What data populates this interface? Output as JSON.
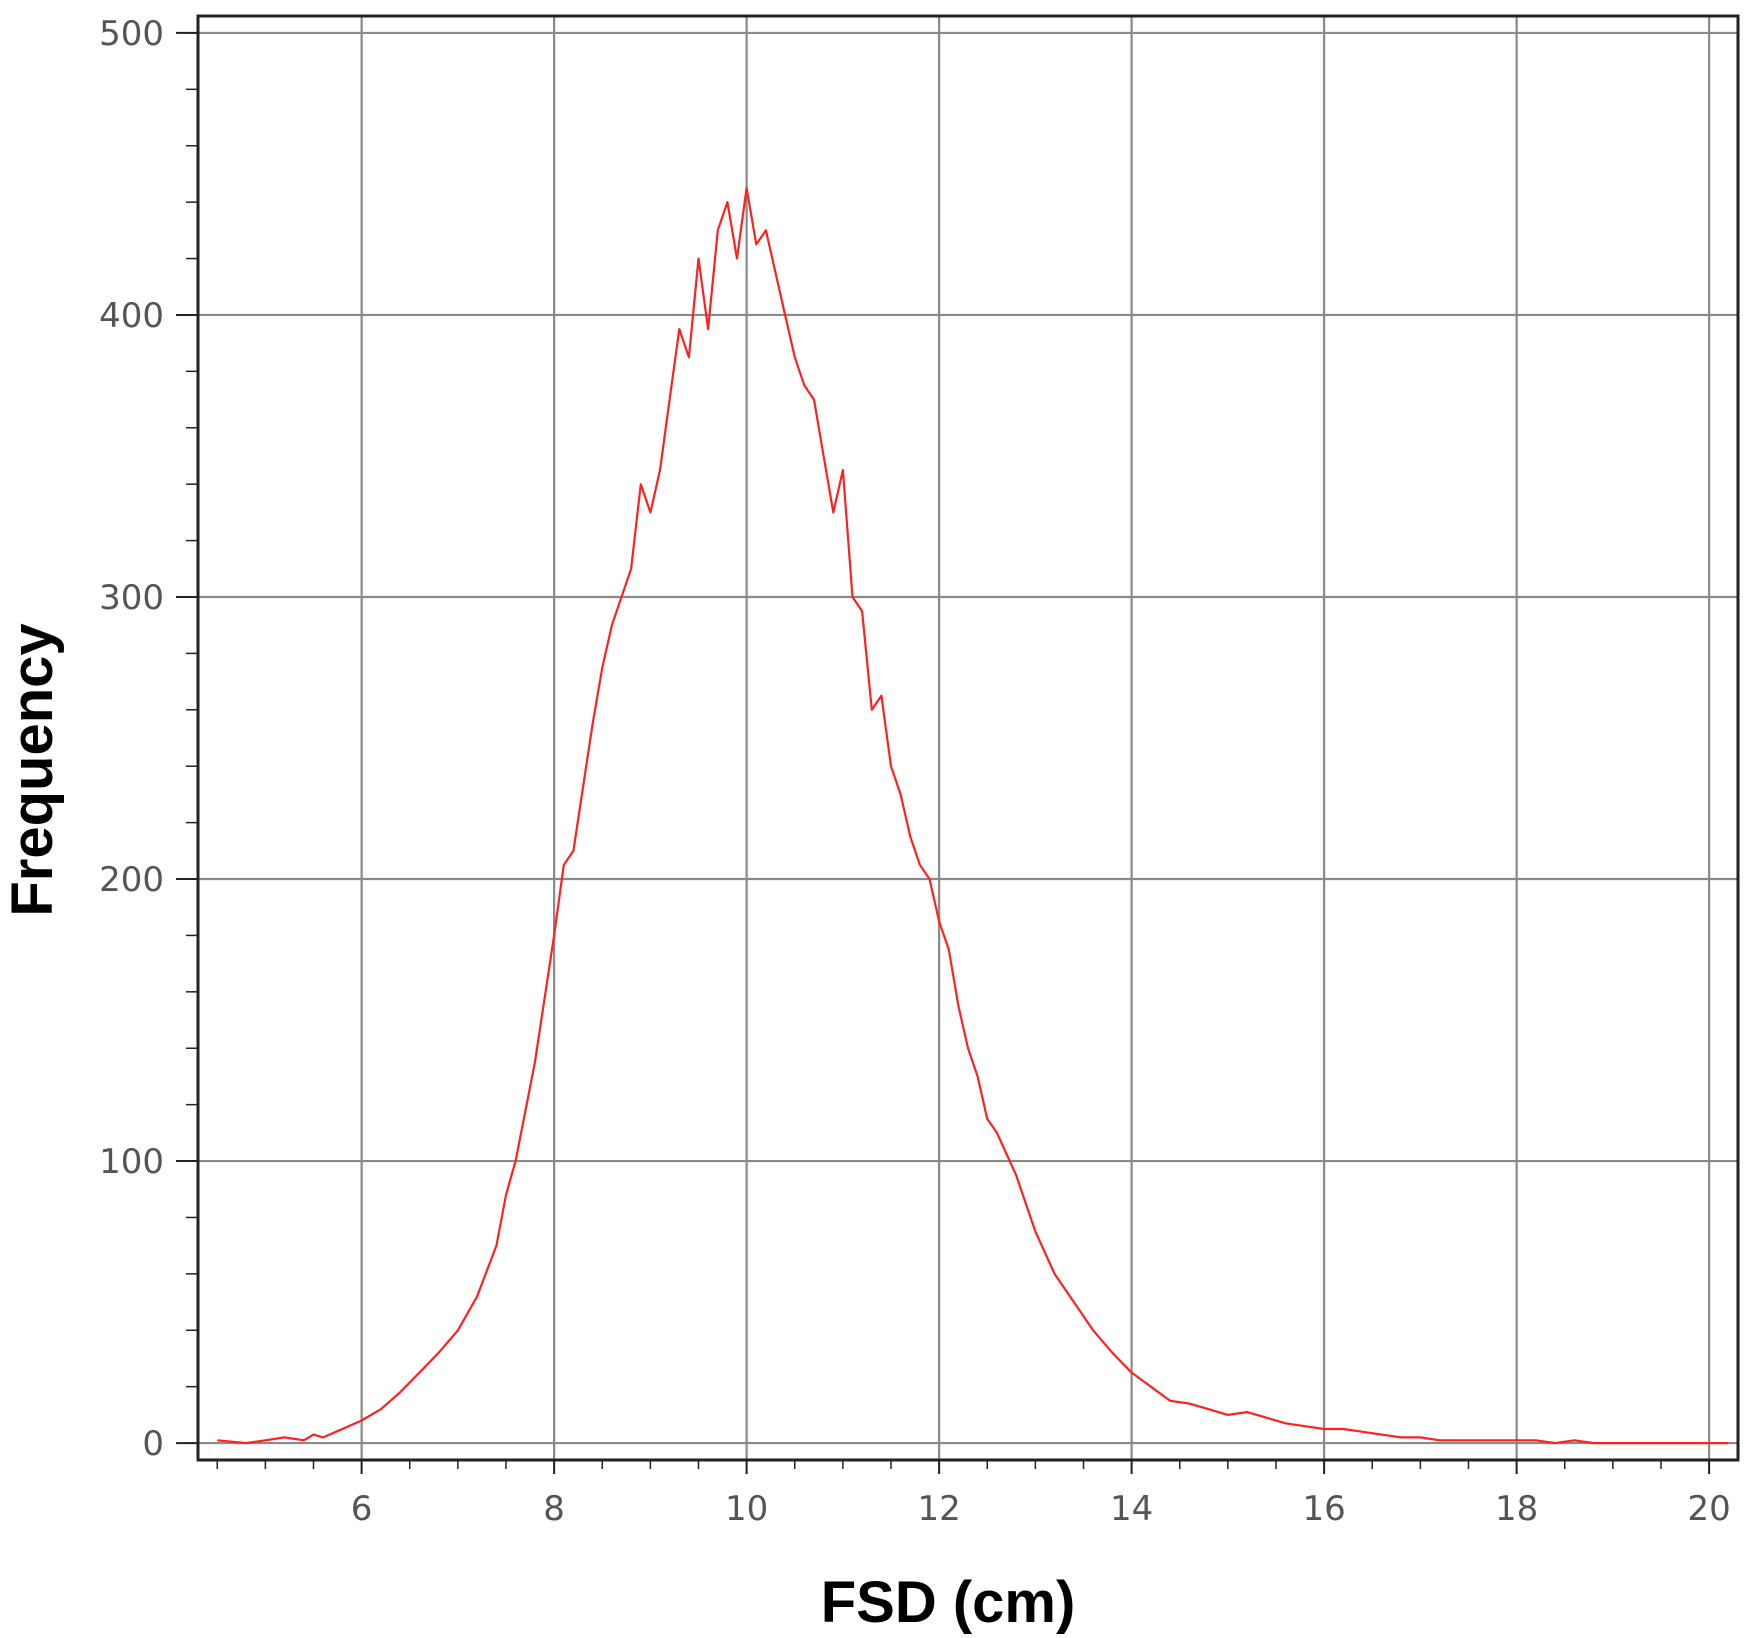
{
  "chart_data": {
    "type": "line",
    "title": "",
    "xlabel": "FSD (cm)",
    "ylabel": "Frequency",
    "xlim": [
      4.3,
      20.3
    ],
    "ylim": [
      -6,
      506
    ],
    "xticks": [
      6,
      8,
      10,
      12,
      14,
      16,
      18,
      20
    ],
    "yticks": [
      0,
      100,
      200,
      300,
      400,
      500
    ],
    "x_minor_step": 0.5,
    "y_minor_step": 20,
    "grid": true,
    "line_color": "#ff2020",
    "grid_color": "#8a8a8a",
    "axis_color": "#222222",
    "series": [
      {
        "x": [
          4.5,
          4.8,
          5.0,
          5.2,
          5.4,
          5.5,
          5.6,
          5.8,
          6.0,
          6.2,
          6.4,
          6.6,
          6.8,
          7.0,
          7.2,
          7.4,
          7.5,
          7.6,
          7.8,
          8.0,
          8.1,
          8.2,
          8.4,
          8.5,
          8.6,
          8.8,
          8.9,
          9.0,
          9.1,
          9.2,
          9.3,
          9.4,
          9.5,
          9.6,
          9.7,
          9.8,
          9.9,
          10.0,
          10.1,
          10.2,
          10.3,
          10.4,
          10.5,
          10.6,
          10.7,
          10.8,
          10.9,
          11.0,
          11.1,
          11.2,
          11.3,
          11.4,
          11.5,
          11.6,
          11.7,
          11.8,
          11.9,
          12.0,
          12.1,
          12.2,
          12.3,
          12.4,
          12.5,
          12.6,
          12.8,
          13.0,
          13.2,
          13.4,
          13.6,
          13.8,
          14.0,
          14.2,
          14.4,
          14.6,
          14.8,
          15.0,
          15.2,
          15.4,
          15.6,
          15.8,
          16.0,
          16.2,
          16.4,
          16.6,
          16.8,
          17.0,
          17.2,
          17.4,
          17.6,
          17.8,
          18.0,
          18.2,
          18.4,
          18.6,
          18.8,
          19.0,
          19.2,
          19.4,
          19.6,
          19.8,
          20.0,
          20.2
        ],
        "y": [
          1,
          0,
          1,
          2,
          1,
          3,
          2,
          5,
          8,
          12,
          18,
          25,
          32,
          40,
          52,
          70,
          88,
          100,
          135,
          180,
          205,
          210,
          255,
          275,
          290,
          310,
          340,
          330,
          345,
          370,
          395,
          385,
          420,
          395,
          430,
          440,
          420,
          445,
          425,
          430,
          415,
          400,
          385,
          375,
          370,
          350,
          330,
          345,
          300,
          295,
          260,
          265,
          240,
          230,
          215,
          205,
          200,
          185,
          175,
          155,
          140,
          130,
          115,
          110,
          95,
          75,
          60,
          50,
          40,
          32,
          25,
          20,
          15,
          14,
          12,
          10,
          11,
          9,
          7,
          6,
          5,
          5,
          4,
          3,
          2,
          2,
          1,
          1,
          1,
          1,
          1,
          1,
          0,
          1,
          0,
          0,
          0,
          0,
          0,
          0,
          0,
          0
        ]
      }
    ]
  }
}
